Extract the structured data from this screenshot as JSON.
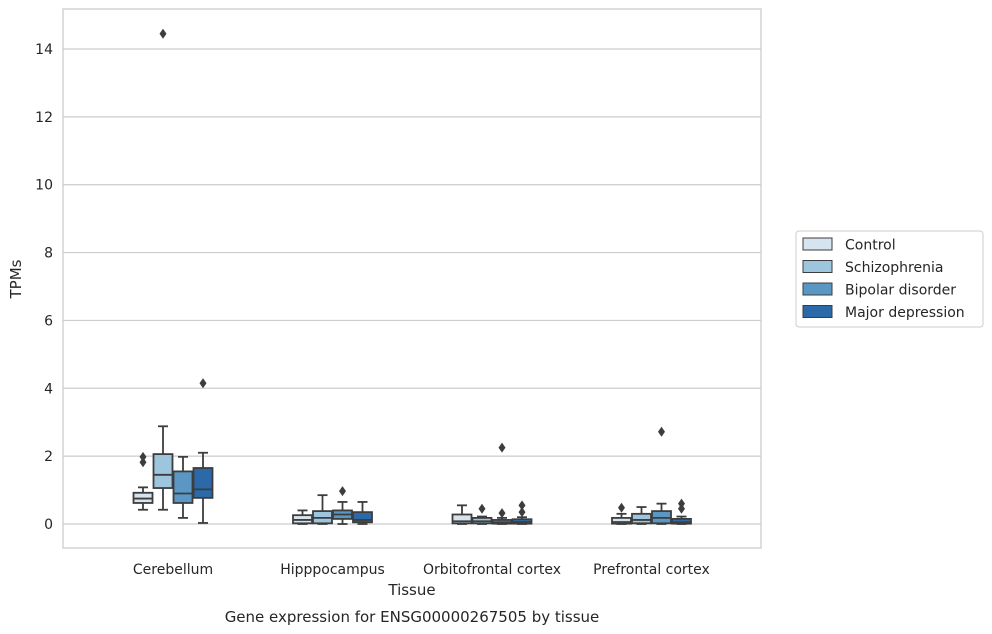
{
  "chart_data": {
    "type": "box",
    "title": "",
    "xlabel": "Tissue",
    "ylabel": "TPMs",
    "caption": "Gene expression for ENSG00000267505 by tissue",
    "ylim": [
      -0.7,
      15.2
    ],
    "yticks": [
      0,
      2,
      4,
      6,
      8,
      10,
      12,
      14
    ],
    "grid": "horizontal",
    "legend_placement": "right",
    "categories": [
      "Cerebellum",
      "Hipppocampus",
      "Orbitofrontal cortex",
      "Prefrontal cortex"
    ],
    "series": [
      {
        "name": "Control",
        "color": "#d6e4f0",
        "boxes": [
          {
            "whisker_low": 0.42,
            "q1": 0.62,
            "median": 0.75,
            "q3": 0.92,
            "whisker_high": 1.08,
            "outliers": [
              1.82,
              1.98
            ]
          },
          {
            "whisker_low": 0.0,
            "q1": 0.02,
            "median": 0.12,
            "q3": 0.26,
            "whisker_high": 0.4,
            "outliers": []
          },
          {
            "whisker_low": 0.0,
            "q1": 0.02,
            "median": 0.08,
            "q3": 0.28,
            "whisker_high": 0.55,
            "outliers": []
          },
          {
            "whisker_low": 0.0,
            "q1": 0.01,
            "median": 0.06,
            "q3": 0.18,
            "whisker_high": 0.3,
            "outliers": [
              0.48
            ]
          }
        ]
      },
      {
        "name": "Schizophrenia",
        "color": "#9ec5de",
        "boxes": [
          {
            "whisker_low": 0.42,
            "q1": 1.06,
            "median": 1.45,
            "q3": 2.06,
            "whisker_high": 2.88,
            "outliers": [
              14.45
            ]
          },
          {
            "whisker_low": 0.0,
            "q1": 0.02,
            "median": 0.18,
            "q3": 0.38,
            "whisker_high": 0.85,
            "outliers": []
          },
          {
            "whisker_low": 0.0,
            "q1": 0.02,
            "median": 0.08,
            "q3": 0.18,
            "whisker_high": 0.22,
            "outliers": [
              0.45
            ]
          },
          {
            "whisker_low": 0.0,
            "q1": 0.02,
            "median": 0.12,
            "q3": 0.3,
            "whisker_high": 0.5,
            "outliers": []
          }
        ]
      },
      {
        "name": "Bipolar disorder",
        "color": "#5a97c4",
        "boxes": [
          {
            "whisker_low": 0.18,
            "q1": 0.62,
            "median": 0.9,
            "q3": 1.55,
            "whisker_high": 1.98,
            "outliers": []
          },
          {
            "whisker_low": 0.0,
            "q1": 0.15,
            "median": 0.28,
            "q3": 0.4,
            "whisker_high": 0.65,
            "outliers": [
              0.97
            ]
          },
          {
            "whisker_low": 0.0,
            "q1": 0.01,
            "median": 0.05,
            "q3": 0.12,
            "whisker_high": 0.18,
            "outliers": [
              0.32,
              2.25
            ]
          },
          {
            "whisker_low": 0.0,
            "q1": 0.02,
            "median": 0.18,
            "q3": 0.38,
            "whisker_high": 0.6,
            "outliers": [
              2.72
            ]
          }
        ]
      },
      {
        "name": "Major depression",
        "color": "#2b69a8",
        "boxes": [
          {
            "whisker_low": 0.03,
            "q1": 0.77,
            "median": 1.02,
            "q3": 1.65,
            "whisker_high": 2.1,
            "outliers": [
              4.15
            ]
          },
          {
            "whisker_low": 0.0,
            "q1": 0.05,
            "median": 0.12,
            "q3": 0.35,
            "whisker_high": 0.65,
            "outliers": []
          },
          {
            "whisker_low": 0.0,
            "q1": 0.01,
            "median": 0.06,
            "q3": 0.14,
            "whisker_high": 0.2,
            "outliers": [
              0.35,
              0.55
            ]
          },
          {
            "whisker_low": 0.0,
            "q1": 0.01,
            "median": 0.05,
            "q3": 0.15,
            "whisker_high": 0.22,
            "outliers": [
              0.45,
              0.6
            ]
          }
        ]
      }
    ]
  }
}
